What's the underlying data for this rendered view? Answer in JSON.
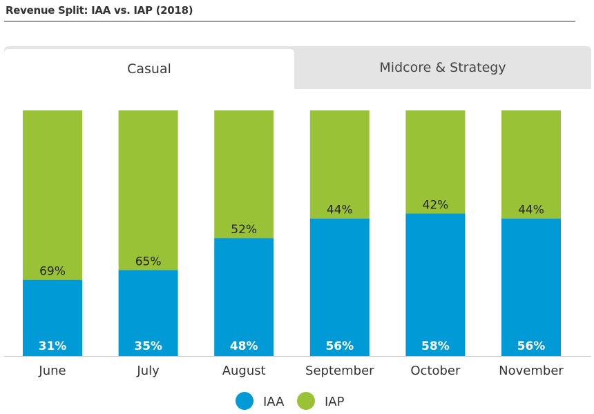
{
  "header": {
    "title": "Revenue Split: IAA vs. IAP (2018)"
  },
  "tabs": [
    {
      "label": "Casual",
      "active": true
    },
    {
      "label": "Midcore & Strategy",
      "active": false
    }
  ],
  "colors": {
    "iaa": "#009ad6",
    "iap": "#99c236",
    "axis": "#cccccc"
  },
  "chart_data": {
    "type": "bar",
    "stacked": true,
    "percent": true,
    "categories": [
      "June",
      "July",
      "August",
      "September",
      "October",
      "November"
    ],
    "series": [
      {
        "name": "IAA",
        "values": [
          31,
          35,
          48,
          56,
          58,
          56
        ],
        "labels": [
          "31%",
          "35%",
          "48%",
          "56%",
          "58%",
          "56%"
        ]
      },
      {
        "name": "IAP",
        "values": [
          69,
          65,
          52,
          44,
          42,
          44
        ],
        "labels": [
          "69%",
          "65%",
          "52%",
          "44%",
          "42%",
          "44%"
        ]
      }
    ],
    "ylim": [
      0,
      100
    ],
    "legend": "bottom-center",
    "grid": false
  }
}
